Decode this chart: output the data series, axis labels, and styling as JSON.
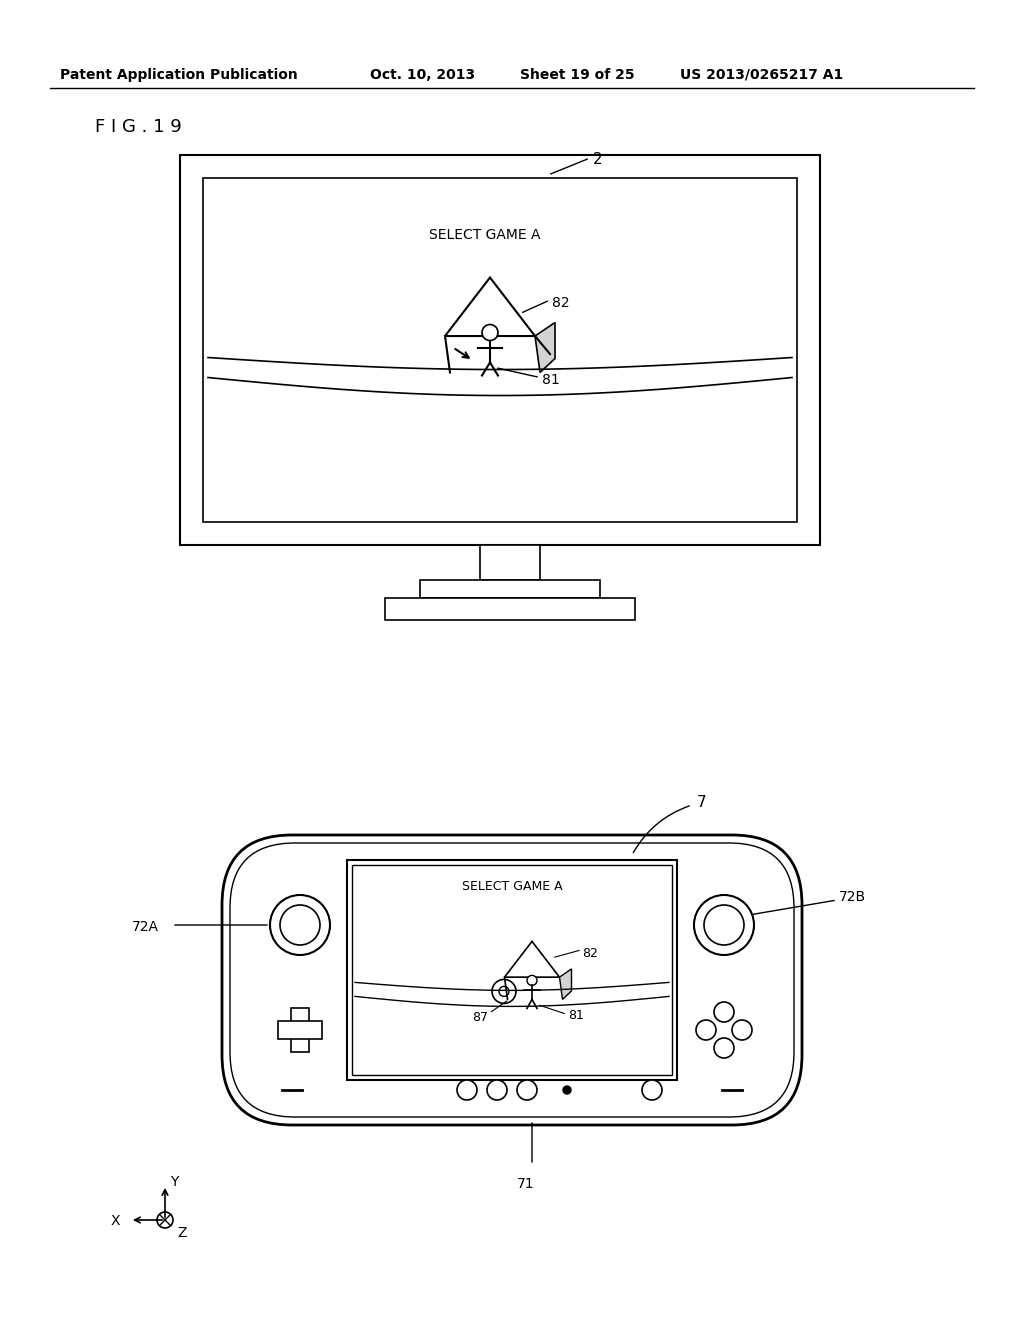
{
  "background_color": "#ffffff",
  "header_text": "Patent Application Publication",
  "header_date": "Oct. 10, 2013",
  "header_sheet": "Sheet 19 of 25",
  "header_patent": "US 2013/0265217 A1",
  "fig_label": "F I G . 1 9",
  "monitor_label": "2",
  "monitor_screen_text": "SELECT GAME A",
  "monitor_label_82": "82",
  "monitor_label_81": "81",
  "controller_label": "7",
  "controller_label_71": "71",
  "controller_label_72A": "72A",
  "controller_label_72B": "72B",
  "controller_screen_text": "SELECT GAME A",
  "controller_label_82b": "82",
  "controller_label_81b": "81",
  "controller_label_87": "87",
  "axis_x": "X",
  "axis_y": "Y",
  "axis_z": "Z"
}
